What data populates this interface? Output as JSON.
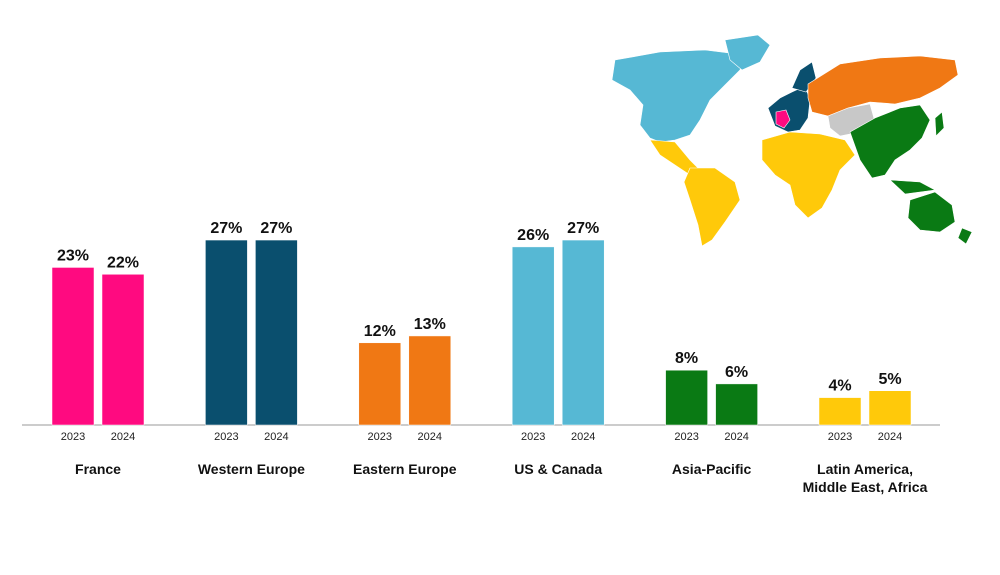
{
  "chart_data": {
    "type": "bar",
    "categories": [
      "France",
      "Western Europe",
      "Eastern Europe",
      "US & Canada",
      "Asia-Pacific",
      "Latin America, Middle East, Africa"
    ],
    "category_lines": [
      [
        "France"
      ],
      [
        "Western Europe"
      ],
      [
        "Eastern Europe"
      ],
      [
        "US & Canada"
      ],
      [
        "Asia-Pacific"
      ],
      [
        "Latin America,",
        "Middle East, Africa"
      ]
    ],
    "series": [
      {
        "year": "2023",
        "values": [
          23,
          27,
          12,
          26,
          8,
          4
        ]
      },
      {
        "year": "2024",
        "values": [
          22,
          27,
          13,
          27,
          6,
          5
        ]
      }
    ],
    "value_suffix": "%",
    "colors": [
      "#ff0a80",
      "#0a4f6e",
      "#f07814",
      "#56b8d4",
      "#0a7a14",
      "#ffc90a"
    ],
    "ylim": [
      0,
      30
    ],
    "grid": false,
    "legend": "none"
  },
  "map": {
    "region_colors": {
      "north_america": "#56b8d4",
      "latin_america_africa_middle_east": "#ffc90a",
      "western_europe": "#0a4f6e",
      "france": "#ff0a80",
      "eastern_europe_russia": "#f07814",
      "central_asia": "#c8c8c8",
      "asia_pacific": "#0a7a14"
    }
  }
}
